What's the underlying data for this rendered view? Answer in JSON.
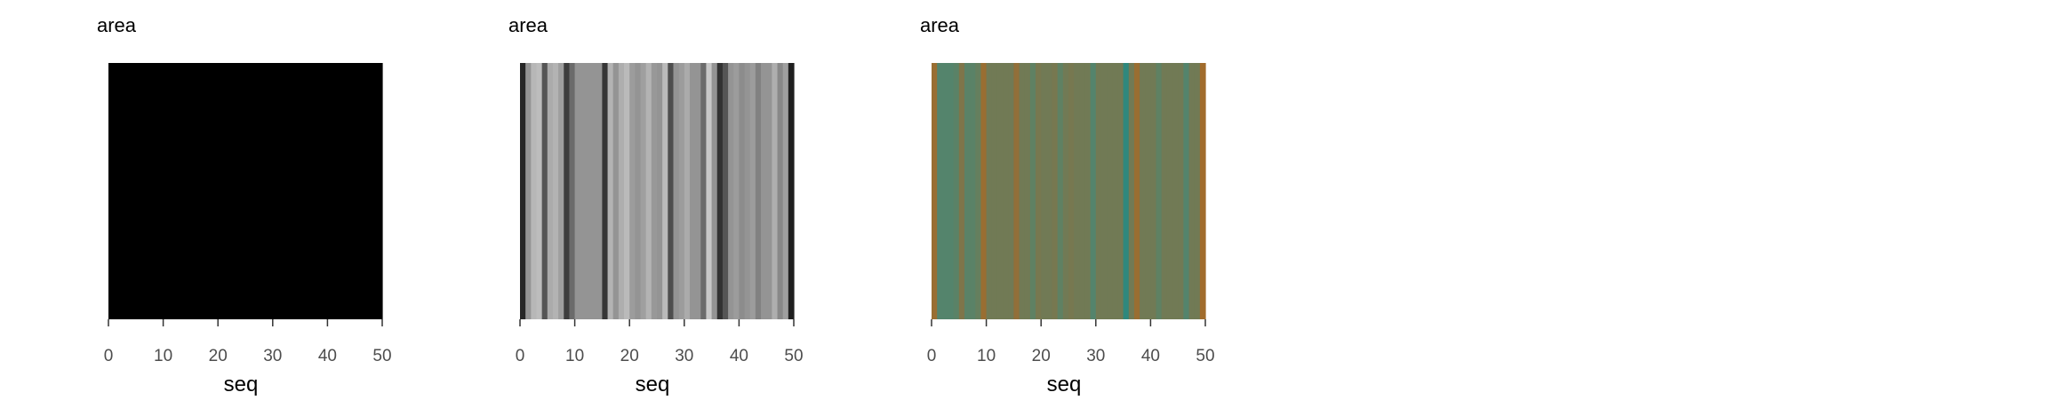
{
  "chart_data": [
    {
      "type": "heatmap",
      "title": "area",
      "xlabel": "seq",
      "xlim": [
        0,
        50
      ],
      "xticks": [
        0,
        10,
        20,
        30,
        40,
        50
      ],
      "palette": "solid-black",
      "colors": [
        "#000000"
      ],
      "stripes": [
        0,
        0,
        0,
        0,
        0,
        0,
        0,
        0,
        0,
        0,
        0,
        0,
        0,
        0,
        0,
        0,
        0,
        0,
        0,
        0,
        0,
        0,
        0,
        0,
        0,
        0,
        0,
        0,
        0,
        0,
        0,
        0,
        0,
        0,
        0,
        0,
        0,
        0,
        0,
        0,
        0,
        0,
        0,
        0,
        0,
        0,
        0,
        0,
        0,
        0
      ]
    },
    {
      "type": "heatmap",
      "title": "area",
      "xlabel": "seq",
      "xlim": [
        0,
        50
      ],
      "xticks": [
        0,
        10,
        20,
        30,
        40,
        50
      ],
      "palette": "grayscale",
      "colors": [
        "#1a1a1a",
        "#555555",
        "#8c8c8c",
        "#b3b3b3",
        "#d6d6d6"
      ],
      "stripes": [
        0.05,
        0.55,
        0.78,
        0.82,
        0.25,
        0.7,
        0.75,
        0.62,
        0.15,
        0.35,
        0.55,
        0.55,
        0.55,
        0.55,
        0.55,
        0.12,
        0.75,
        0.55,
        0.72,
        0.8,
        0.6,
        0.55,
        0.62,
        0.75,
        0.58,
        0.55,
        0.8,
        0.22,
        0.55,
        0.6,
        0.7,
        0.55,
        0.55,
        0.35,
        0.9,
        0.55,
        0.1,
        0.25,
        0.55,
        0.6,
        0.5,
        0.55,
        0.6,
        0.45,
        0.55,
        0.55,
        0.72,
        0.48,
        0.62,
        0.02
      ]
    },
    {
      "type": "heatmap",
      "title": "area",
      "xlabel": "seq",
      "xlim": [
        0,
        50
      ],
      "xticks": [
        0,
        10,
        20,
        30,
        40,
        50
      ],
      "palette": "teal-orange",
      "colors": [
        "#1a8a86",
        "#4e8670",
        "#6b7d5a",
        "#8a7040",
        "#b06a1e"
      ],
      "stripes": [
        0.85,
        0.3,
        0.3,
        0.3,
        0.35,
        0.65,
        0.35,
        0.35,
        0.45,
        0.85,
        0.55,
        0.55,
        0.55,
        0.55,
        0.55,
        0.8,
        0.55,
        0.55,
        0.4,
        0.6,
        0.55,
        0.55,
        0.6,
        0.4,
        0.55,
        0.6,
        0.55,
        0.55,
        0.55,
        0.3,
        0.55,
        0.55,
        0.55,
        0.55,
        0.55,
        0.1,
        0.55,
        0.85,
        0.55,
        0.55,
        0.55,
        0.4,
        0.55,
        0.55,
        0.55,
        0.55,
        0.3,
        0.55,
        0.55,
        0.9
      ]
    }
  ]
}
